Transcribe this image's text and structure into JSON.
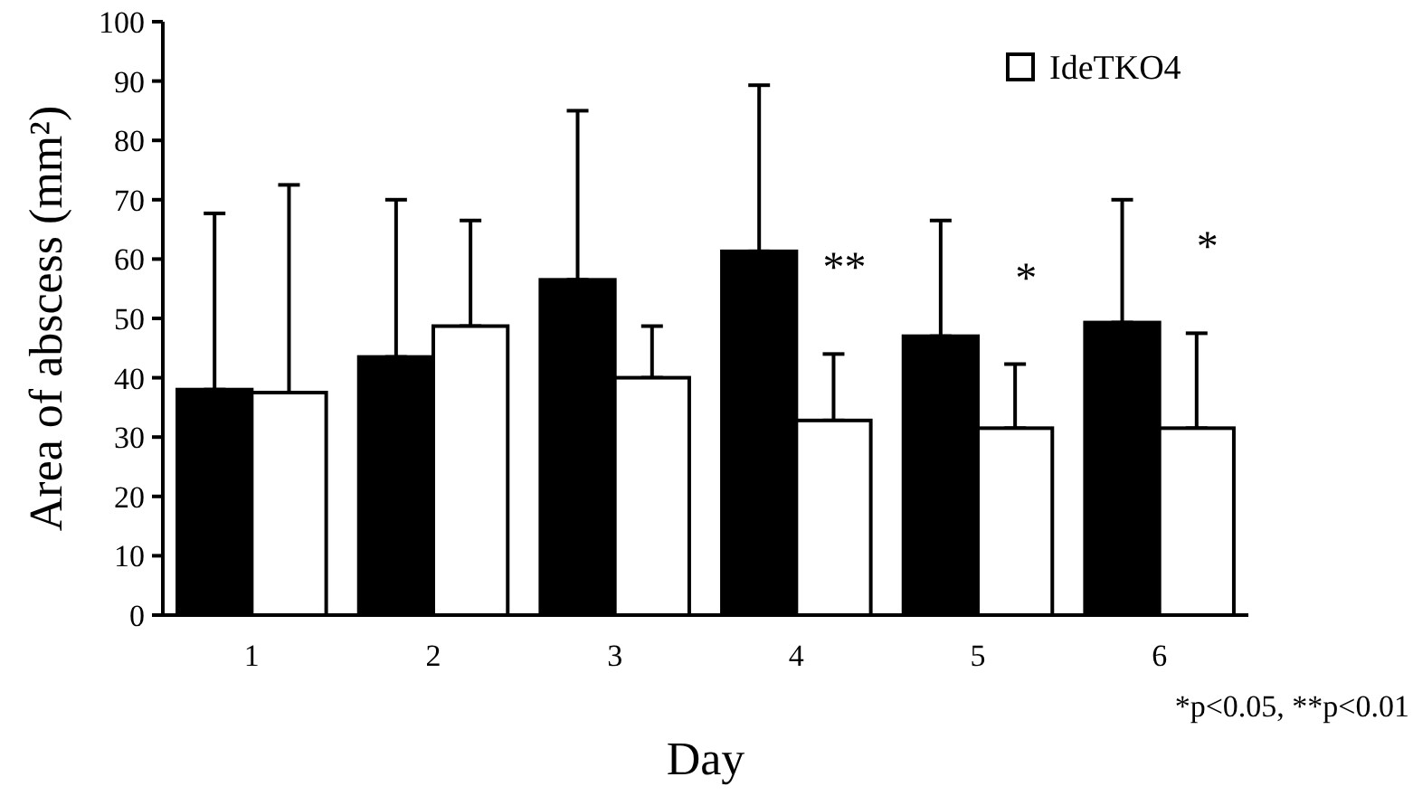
{
  "chart_data": {
    "type": "bar",
    "xlabel": "Day",
    "ylabel": "Area of abscess (mm²)",
    "categories": [
      "1",
      "2",
      "3",
      "4",
      "5",
      "6"
    ],
    "series": [
      {
        "color": "#000000",
        "values": [
          38,
          43.5,
          56.5,
          61.3,
          47,
          49.3
        ],
        "errors": [
          [
            38,
            67.7
          ],
          [
            43.5,
            70
          ],
          [
            56.5,
            85
          ],
          [
            61.3,
            89.3
          ],
          [
            47,
            66.5
          ],
          [
            49.3,
            70
          ]
        ]
      },
      {
        "name": "IdeTKO4",
        "color": "#ffffff",
        "values": [
          37.5,
          48.7,
          40,
          32.8,
          31.5,
          31.5
        ],
        "errors": [
          [
            37.5,
            72.5
          ],
          [
            48.7,
            66.5
          ],
          [
            40,
            48.7
          ],
          [
            32.8,
            44
          ],
          [
            31.5,
            42.3
          ],
          [
            31.5,
            47.5
          ]
        ]
      }
    ],
    "ylim": [
      0,
      100
    ],
    "yticks": [
      0,
      10,
      20,
      30,
      40,
      50,
      60,
      70,
      80,
      90,
      100
    ],
    "legend": "top right",
    "annotations": [
      {
        "text": "**",
        "x": "4",
        "y": 44
      },
      {
        "text": "*",
        "x": "5",
        "y": 42.3
      },
      {
        "text": "*",
        "x": "6",
        "y": 47.5
      },
      "*p<0.05, **p<0.01"
    ]
  }
}
